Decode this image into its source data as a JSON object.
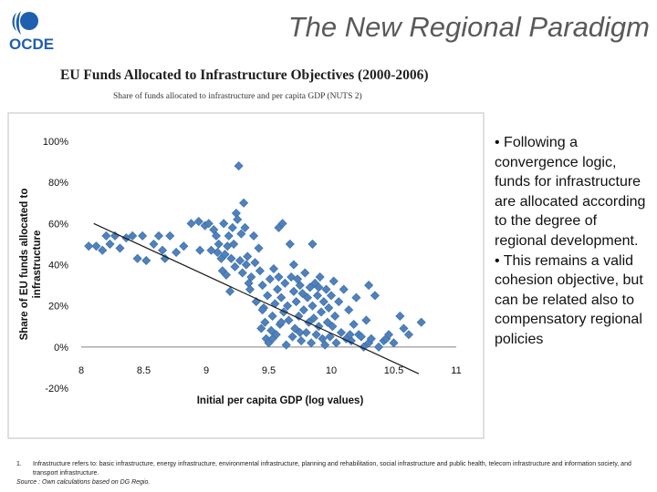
{
  "slide": {
    "title": "The New Regional Paradigm",
    "logo_text": "OCDE"
  },
  "colors": {
    "marker": "#4F81BD",
    "marker_edge": "#3A6BA5",
    "trendline": "#1a1a1a",
    "frame": "#bfbfbf",
    "title_gray": "#595959"
  },
  "bullets": [
    "• Following a convergence logic, funds for infrastructure are allocated according to the degree of regional development.",
    "• This remains a valid cohesion objective, but can be related also to compensatory regional policies"
  ],
  "footnote": {
    "number": "1.",
    "text": "Infrastructure refers to: basic infrastructure, energy infrastructure, environmental infrastructure, planning and rehabilitation, social infrastructure and public health, telecom infrastructure and information society, and transport infrastructure.",
    "source": "Source : Own calculations based on DG Regio."
  },
  "chart_data": {
    "type": "scatter",
    "title": "EU Funds Allocated to Infrastructure Objectives (2000-2006)",
    "subtitle": "Share of funds allocated to infrastructure and per capita GDP (NUTS 2)",
    "xlabel": "Initial per capita GDP (log values)",
    "ylabel": "Share of EU funds allocated to infrastructure",
    "xlim": [
      8,
      11
    ],
    "ylim": [
      -0.2,
      1.0
    ],
    "x_ticks": [
      8,
      8.5,
      9,
      9.5,
      10,
      10.5,
      11
    ],
    "y_ticks": [
      -0.2,
      0,
      0.2,
      0.4,
      0.6,
      0.8,
      1.0
    ],
    "x_tick_labels": [
      "8",
      "8.5",
      "9",
      "9.5",
      "10",
      "10.5",
      "11"
    ],
    "y_tick_labels": [
      "-20%",
      "0%",
      "20%",
      "40%",
      "60%",
      "80%",
      "100%"
    ],
    "grid": false,
    "legend": "none",
    "trendline": {
      "x": [
        8.1,
        10.7
      ],
      "y": [
        0.6,
        -0.13
      ]
    },
    "points": [
      [
        8.06,
        0.49
      ],
      [
        8.12,
        0.49
      ],
      [
        8.17,
        0.47
      ],
      [
        8.2,
        0.54
      ],
      [
        8.23,
        0.5
      ],
      [
        8.27,
        0.54
      ],
      [
        8.31,
        0.48
      ],
      [
        8.36,
        0.53
      ],
      [
        8.41,
        0.54
      ],
      [
        8.45,
        0.43
      ],
      [
        8.49,
        0.54
      ],
      [
        8.52,
        0.42
      ],
      [
        8.58,
        0.5
      ],
      [
        8.62,
        0.54
      ],
      [
        8.65,
        0.47
      ],
      [
        8.67,
        0.43
      ],
      [
        8.71,
        0.54
      ],
      [
        8.76,
        0.46
      ],
      [
        8.82,
        0.49
      ],
      [
        8.88,
        0.6
      ],
      [
        8.94,
        0.61
      ],
      [
        8.95,
        0.47
      ],
      [
        8.99,
        0.59
      ],
      [
        9.02,
        0.6
      ],
      [
        9.04,
        0.47
      ],
      [
        9.06,
        0.57
      ],
      [
        9.08,
        0.54
      ],
      [
        9.09,
        0.46
      ],
      [
        9.1,
        0.5
      ],
      [
        9.12,
        0.43
      ],
      [
        9.13,
        0.37
      ],
      [
        9.14,
        0.6
      ],
      [
        9.15,
        0.45
      ],
      [
        9.16,
        0.35
      ],
      [
        9.17,
        0.49
      ],
      [
        9.18,
        0.54
      ],
      [
        9.19,
        0.27
      ],
      [
        9.2,
        0.43
      ],
      [
        9.21,
        0.58
      ],
      [
        9.22,
        0.5
      ],
      [
        9.23,
        0.39
      ],
      [
        9.24,
        0.65
      ],
      [
        9.25,
        0.62
      ],
      [
        9.26,
        0.88
      ],
      [
        9.27,
        0.42
      ],
      [
        9.28,
        0.55
      ],
      [
        9.29,
        0.36
      ],
      [
        9.3,
        0.7
      ],
      [
        9.31,
        0.58
      ],
      [
        9.32,
        0.4
      ],
      [
        9.33,
        0.44
      ],
      [
        9.34,
        0.31
      ],
      [
        9.35,
        0.28
      ],
      [
        9.36,
        0.34
      ],
      [
        9.38,
        0.54
      ],
      [
        9.39,
        0.41
      ],
      [
        9.4,
        0.22
      ],
      [
        9.42,
        0.48
      ],
      [
        9.43,
        0.37
      ],
      [
        9.44,
        0.09
      ],
      [
        9.45,
        0.3
      ],
      [
        9.46,
        0.19
      ],
      [
        9.47,
        0.12
      ],
      [
        9.48,
        0.04
      ],
      [
        9.49,
        0.25
      ],
      [
        9.5,
        0.02
      ],
      [
        9.51,
        0.33
      ],
      [
        9.52,
        0.08
      ],
      [
        9.53,
        0.15
      ],
      [
        9.54,
        0.38
      ],
      [
        9.55,
        0.21
      ],
      [
        9.56,
        0.06
      ],
      [
        9.57,
        0.28
      ],
      [
        9.58,
        0.58
      ],
      [
        9.59,
        0.11
      ],
      [
        9.6,
        0.24
      ],
      [
        9.61,
        0.6
      ],
      [
        9.62,
        0.17
      ],
      [
        9.63,
        0.31
      ],
      [
        9.64,
        0.01
      ],
      [
        9.65,
        0.2
      ],
      [
        9.66,
        0.13
      ],
      [
        9.67,
        0.5
      ],
      [
        9.68,
        0.34
      ],
      [
        9.69,
        0.05
      ],
      [
        9.7,
        0.27
      ],
      [
        9.71,
        0.09
      ],
      [
        9.72,
        0.22
      ],
      [
        9.73,
        0.33
      ],
      [
        9.74,
        0.15
      ],
      [
        9.75,
        0.3
      ],
      [
        9.76,
        0.03
      ],
      [
        9.77,
        0.26
      ],
      [
        9.78,
        0.18
      ],
      [
        9.79,
        0.36
      ],
      [
        9.8,
        0.07
      ],
      [
        9.81,
        0.24
      ],
      [
        9.82,
        0.12
      ],
      [
        9.83,
        0.29
      ],
      [
        9.84,
        0.02
      ],
      [
        9.85,
        0.2
      ],
      [
        9.86,
        0.14
      ],
      [
        9.87,
        0.31
      ],
      [
        9.88,
        0.06
      ],
      [
        9.89,
        0.25
      ],
      [
        9.9,
        0.1
      ],
      [
        9.91,
        0.34
      ],
      [
        9.92,
        0.17
      ],
      [
        9.93,
        0.04
      ],
      [
        9.94,
        0.22
      ],
      [
        9.95,
        0.01
      ],
      [
        9.96,
        0.28
      ],
      [
        9.97,
        0.12
      ],
      [
        9.98,
        0.19
      ],
      [
        9.99,
        0.05
      ],
      [
        10.0,
        0.25
      ],
      [
        10.01,
        0.1
      ],
      [
        10.02,
        0.32
      ],
      [
        10.03,
        0.15
      ],
      [
        10.04,
        0.02
      ],
      [
        10.06,
        0.22
      ],
      [
        10.08,
        0.07
      ],
      [
        10.1,
        0.28
      ],
      [
        10.12,
        0.04
      ],
      [
        10.14,
        0.18
      ],
      [
        10.16,
        0.03
      ],
      [
        10.18,
        0.11
      ],
      [
        10.2,
        0.24
      ],
      [
        10.22,
        0.06
      ],
      [
        10.24,
        0.05
      ],
      [
        10.26,
        0.0
      ],
      [
        10.28,
        0.13
      ],
      [
        10.3,
        0.02
      ],
      [
        10.32,
        0.04
      ],
      [
        10.35,
        0.25
      ],
      [
        10.38,
        0.0
      ],
      [
        10.42,
        0.03
      ],
      [
        10.44,
        0.04
      ],
      [
        10.46,
        0.06
      ],
      [
        10.5,
        0.02
      ],
      [
        10.55,
        0.15
      ],
      [
        10.58,
        0.09
      ],
      [
        10.62,
        0.06
      ],
      [
        10.72,
        0.12
      ],
      [
        10.3,
        0.3
      ],
      [
        9.85,
        0.5
      ],
      [
        9.7,
        0.4
      ],
      [
        9.9,
        0.29
      ],
      [
        9.6,
        0.12
      ],
      [
        9.53,
        0.04
      ],
      [
        9.75,
        0.07
      ],
      [
        10.15,
        0.06
      ],
      [
        9.45,
        0.18
      ],
      [
        9.58,
        0.34
      ]
    ]
  }
}
